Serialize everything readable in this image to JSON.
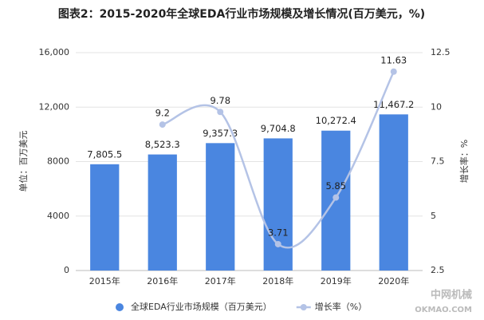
{
  "chart_data": {
    "type": "bar-line",
    "title": "图表2：2015-2020年全球EDA行业市场规模及增长情况(百万美元，%)",
    "y_label": "单位：百万美元",
    "y2_label": "增长率：%",
    "categories": [
      "2015年",
      "2016年",
      "2017年",
      "2018年",
      "2019年",
      "2020年"
    ],
    "series": [
      {
        "name": "全球EDA行业市场规模（百万美元）",
        "type": "bar",
        "color": "#4a86e0",
        "values": [
          7805.5,
          8523.3,
          9357.3,
          9704.8,
          10272.4,
          11467.2
        ],
        "value_labels": [
          "7,805.5",
          "8,523.3",
          "9,357.3",
          "9,704.8",
          "10,272.4",
          "11,467.2"
        ]
      },
      {
        "name": "增长率（%）",
        "type": "line",
        "axis": "y2",
        "color": "#b4c3e6",
        "values": [
          null,
          9.2,
          9.78,
          3.71,
          5.85,
          11.63
        ]
      }
    ],
    "ylim": [
      0,
      16000
    ],
    "yticks": [
      0,
      4000,
      8000,
      {
        "value": 12000,
        "label": "12,000"
      },
      {
        "value": 16000,
        "label": "16,000"
      }
    ],
    "y2lim": [
      2.5,
      12.5
    ],
    "y2ticks": [
      2.5,
      5,
      7.5,
      10,
      12.5
    ],
    "grid": true,
    "legend": "bottom",
    "watermark": [
      "中网机械",
      "OKMAO.COM"
    ]
  }
}
